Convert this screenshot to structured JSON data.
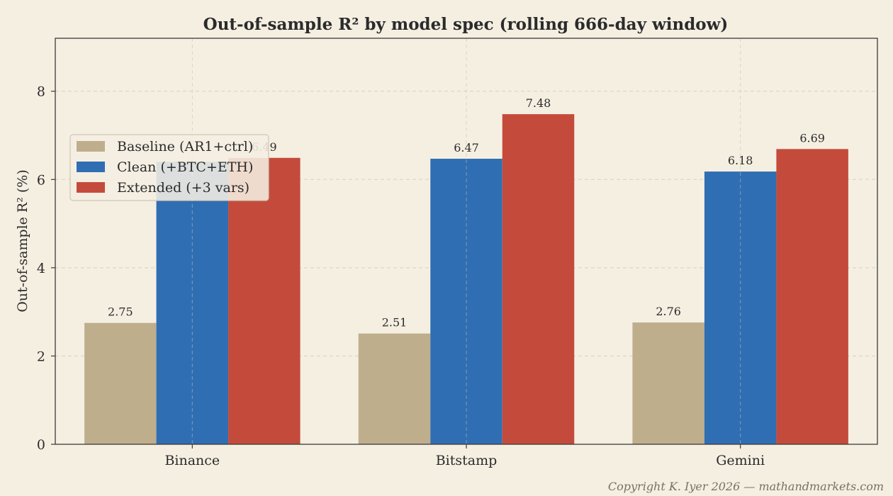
{
  "chart_data": {
    "type": "bar",
    "title": "Out-of-sample R² by model spec (rolling 666-day window)",
    "xlabel": "",
    "ylabel": "Out-of-sample R² (%)",
    "categories": [
      "Binance",
      "Bitstamp",
      "Gemini"
    ],
    "series": [
      {
        "name": "Baseline (AR1+ctrl)",
        "values": [
          2.75,
          2.51,
          2.76
        ],
        "color": "#bfae8c",
        "labels": [
          "2.75",
          "2.51",
          "2.76"
        ]
      },
      {
        "name": "Clean (+BTC+ETH)",
        "values": [
          6.4,
          6.47,
          6.18
        ],
        "color": "#2f6eb3",
        "labels": [
          "",
          "6.47",
          "6.18"
        ]
      },
      {
        "name": "Extended (+3 vars)",
        "values": [
          6.49,
          7.48,
          6.69
        ],
        "color": "#c44b3b",
        "labels": [
          "6.49",
          "7.48",
          "6.69"
        ]
      }
    ],
    "ylim": [
      0,
      9.2
    ],
    "yticks": [
      0,
      2,
      4,
      6,
      8
    ],
    "grid": true,
    "legend_position": "upper-left"
  },
  "copyright": "Copyright K. Iyer 2026 — mathandmarkets.com"
}
